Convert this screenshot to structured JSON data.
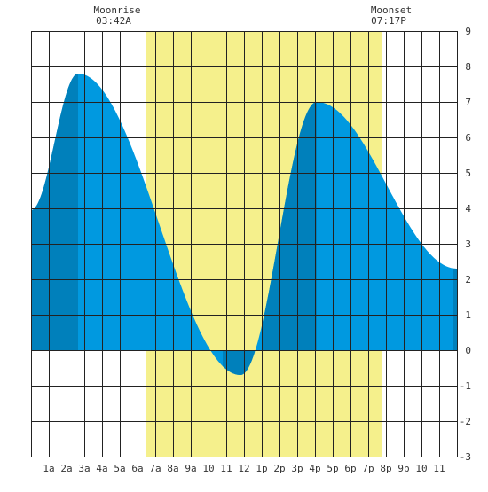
{
  "chart_data": {
    "type": "area",
    "title": "",
    "xlabel": "",
    "ylabel": "",
    "xlim": [
      0,
      24
    ],
    "ylim": [
      -3,
      9
    ],
    "y_ticks": [
      9,
      8,
      7,
      6,
      5,
      4,
      3,
      2,
      1,
      0,
      -1,
      -2,
      -3
    ],
    "y_tick_labels": [
      "9",
      "8",
      "7",
      "6",
      "5",
      "4",
      "3",
      "2",
      "1",
      "0",
      "-1",
      "-2",
      "-3"
    ],
    "x_tick_labels": [
      "1a",
      "2a",
      "3a",
      "4a",
      "5a",
      "6a",
      "7a",
      "8a",
      "9a",
      "10",
      "11",
      "12",
      "1p",
      "2p",
      "3p",
      "4p",
      "5p",
      "6p",
      "7p",
      "8p",
      "9p",
      "10",
      "11"
    ],
    "grid": true,
    "moonrise": {
      "label": "Moonrise",
      "time": "03:42A"
    },
    "moonset": {
      "label": "Moonset",
      "time": "07:17P"
    },
    "daylight": {
      "start_hour": 6.45,
      "end_hour": 19.8
    },
    "tide_extremes": [
      {
        "time_hours": 0.0,
        "height": 3.95
      },
      {
        "time_hours": 2.65,
        "height": 7.8
      },
      {
        "time_hours": 11.8,
        "height": -0.7
      },
      {
        "time_hours": 16.1,
        "height": 7.0
      },
      {
        "time_hours": 24.0,
        "height": 2.3
      }
    ],
    "event_bands": [
      [
        0.0,
        2.65
      ],
      [
        10.8,
        12.6
      ],
      [
        13.0,
        16.1
      ],
      [
        23.8,
        24.0
      ]
    ],
    "colors": {
      "tide_fill": "#0099e0",
      "tide_dark": "#0080bb",
      "daylight": "#f5f08c",
      "grid": "#222222",
      "background": "#ffffff"
    }
  }
}
